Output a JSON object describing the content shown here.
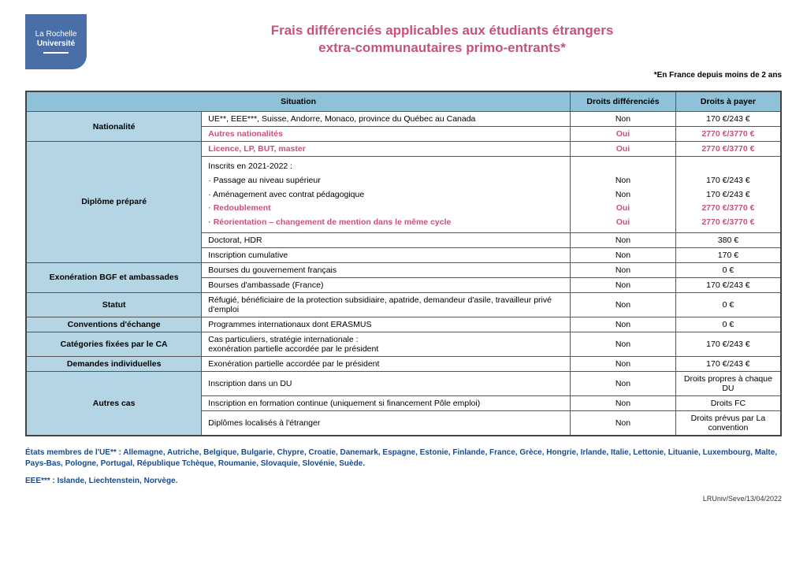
{
  "logo": {
    "line1": "La Rochelle",
    "line2": "Université"
  },
  "title": {
    "line1": "Frais différenciés applicables aux étudiants étrangers",
    "line2": "extra-communautaires primo-entrants*"
  },
  "subnote": "*En France depuis moins de 2 ans",
  "headers": {
    "situation": "Situation",
    "diff": "Droits différenciés",
    "pay": "Droits à payer"
  },
  "cats": {
    "nationalite": "Nationalité",
    "diplome": "Diplôme préparé",
    "exon": "Exonération BGF et ambassades",
    "statut": "Statut",
    "conv": "Conventions d'échange",
    "catca": "Catégories fixées par le CA",
    "demind": "Demandes individuelles",
    "autres": "Autres cas"
  },
  "rows": {
    "nat1": {
      "situ": "UE**, EEE***, Suisse, Andorre, Monaco, province du Québec au Canada",
      "diff": "Non",
      "pay": "170 €/243 €"
    },
    "nat2": {
      "situ": "Autres nationalités",
      "diff": "Oui",
      "pay": "2770 €/3770 €"
    },
    "dip1": {
      "situ": "Licence, LP, BUT, master",
      "diff": "Oui",
      "pay": "2770 €/3770 €"
    },
    "dip2": {
      "head": "Inscrits en 2021-2022 :",
      "l1": "· Passage au niveau supérieur",
      "l2": "· Aménagement avec contrat pédagogique",
      "l3": "· Redoublement",
      "l4": "· Réorientation – changement de mention dans le même cycle",
      "d1": "Non",
      "d2": "Non",
      "d3": "Oui",
      "d4": "Oui",
      "p1": "170 €/243 €",
      "p2": "170 €/243 €",
      "p3": "2770 €/3770 €",
      "p4": "2770 €/3770 €"
    },
    "dip3": {
      "situ": "Doctorat, HDR",
      "diff": "Non",
      "pay": "380 €"
    },
    "dip4": {
      "situ": "Inscription cumulative",
      "diff": "Non",
      "pay": "170 €"
    },
    "exo1": {
      "situ": "Bourses du gouvernement français",
      "diff": "Non",
      "pay": "0 €"
    },
    "exo2": {
      "situ": "Bourses d'ambassade (France)",
      "diff": "Non",
      "pay": "170 €/243 €"
    },
    "stat": {
      "situ": "Réfugié, bénéficiaire de la protection subsidiaire, apatride, demandeur d'asile, travailleur privé d'emploi",
      "diff": "Non",
      "pay": "0 €"
    },
    "conv": {
      "situ": "Programmes internationaux dont ERASMUS",
      "diff": "Non",
      "pay": "0 €"
    },
    "catca": {
      "situ": "Cas particuliers, stratégie internationale :\nexonération partielle accordée par le président",
      "diff": "Non",
      "pay": "170 €/243 €"
    },
    "demind": {
      "situ": "Exonération partielle accordée par le président",
      "diff": "Non",
      "pay": "170 €/243 €"
    },
    "aut1": {
      "situ": "Inscription dans un DU",
      "diff": "Non",
      "pay": "Droits propres à chaque DU"
    },
    "aut2": {
      "situ": "Inscription en formation continue (uniquement si financement Pôle emploi)",
      "diff": "Non",
      "pay": "Droits FC"
    },
    "aut3": {
      "situ": "Diplômes localisés à l'étranger",
      "diff": "Non",
      "pay": "Droits prévus par La convention"
    }
  },
  "footnotes": {
    "ue": "États membres de l'UE** : Allemagne, Autriche, Belgique, Bulgarie, Chypre, Croatie, Danemark, Espagne, Estonie, Finlande, France, Grèce, Hongrie, Irlande, Italie, Lettonie, Lituanie, Luxembourg, Malte, Pays-Bas, Pologne, Portugal, République Tchèque, Roumanie, Slovaquie, Slovénie, Suède.",
    "eee": "EEE*** : Islande, Liechtenstein, Norvège."
  },
  "footer": "LRUniv/Seve/13/04/2022"
}
